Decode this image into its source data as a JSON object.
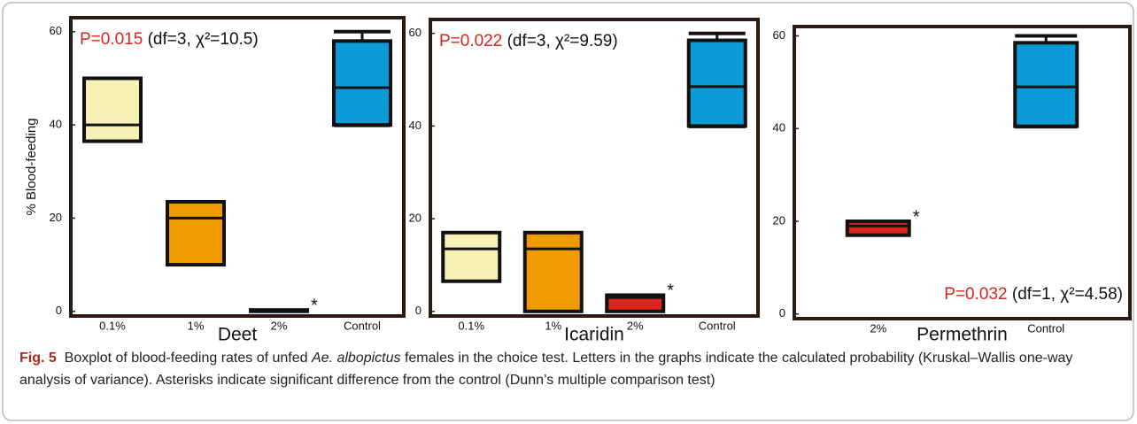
{
  "chart_data": [
    {
      "type": "box",
      "title": "Deet",
      "ylabel": "% Blood-feeding",
      "annotation": {
        "pvalue": "P=0.015",
        "stats": "(df=3, χ²=10.5)",
        "position": "top-left"
      },
      "categories": [
        "0.1%",
        "1%",
        "2%",
        "Control"
      ],
      "q1": [
        36.5,
        10,
        0,
        40
      ],
      "median": [
        40,
        20,
        0,
        48
      ],
      "q3": [
        50,
        23.5,
        0.3,
        58
      ],
      "whisker_low": [
        null,
        null,
        null,
        40
      ],
      "whisker_high": [
        null,
        null,
        null,
        60
      ],
      "colors": [
        "#f7f1b6",
        "#f09a00",
        "#d9261c",
        "#0a9bd8"
      ],
      "significance": [
        null,
        null,
        "*",
        null
      ],
      "ylim": [
        -1,
        63
      ],
      "yticks": [
        0,
        20,
        40,
        60
      ]
    },
    {
      "type": "box",
      "title": "Icaridin",
      "annotation": {
        "pvalue": "P=0.022",
        "stats": "(df=3, χ²=9.59)",
        "position": "top-left"
      },
      "categories": [
        "0.1%",
        "1%",
        "2%",
        "Control"
      ],
      "q1": [
        6.5,
        0,
        0,
        40
      ],
      "median": [
        13.5,
        13.5,
        3,
        48.5
      ],
      "q3": [
        17,
        17,
        3.5,
        58.5
      ],
      "whisker_low": [
        null,
        null,
        null,
        40
      ],
      "whisker_high": [
        null,
        null,
        null,
        60
      ],
      "colors": [
        "#f7f1b6",
        "#f09a00",
        "#d9261c",
        "#0a9bd8"
      ],
      "significance": [
        null,
        null,
        "*",
        null
      ],
      "ylim": [
        -1,
        63
      ],
      "yticks": [
        0,
        20,
        40,
        60
      ]
    },
    {
      "type": "box",
      "title": "Permethrin",
      "annotation": {
        "pvalue": "P=0.032",
        "stats": "(df=1, χ²=4.58)",
        "position": "bottom-right"
      },
      "categories": [
        "2%",
        "Control"
      ],
      "q1": [
        17,
        40.5
      ],
      "median": [
        19,
        49
      ],
      "q3": [
        20,
        58.5
      ],
      "whisker_low": [
        null,
        40.5
      ],
      "whisker_high": [
        null,
        60
      ],
      "colors": [
        "#d9261c",
        "#0a9bd8"
      ],
      "significance": [
        "*",
        null
      ],
      "ylim": [
        -1,
        62
      ],
      "yticks": [
        0,
        20,
        40,
        60
      ]
    }
  ],
  "caption": {
    "label": "Fig. 5",
    "before": "Boxplot of blood-feeding rates of unfed ",
    "species": "Ae. albopictus",
    "after": " females in the choice test. Letters in the graphs indicate the calculated probability (Kruskal–Wallis one-way analysis of variance). Asterisks indicate significant difference from the control (Dunn’s multiple comparison test)"
  }
}
